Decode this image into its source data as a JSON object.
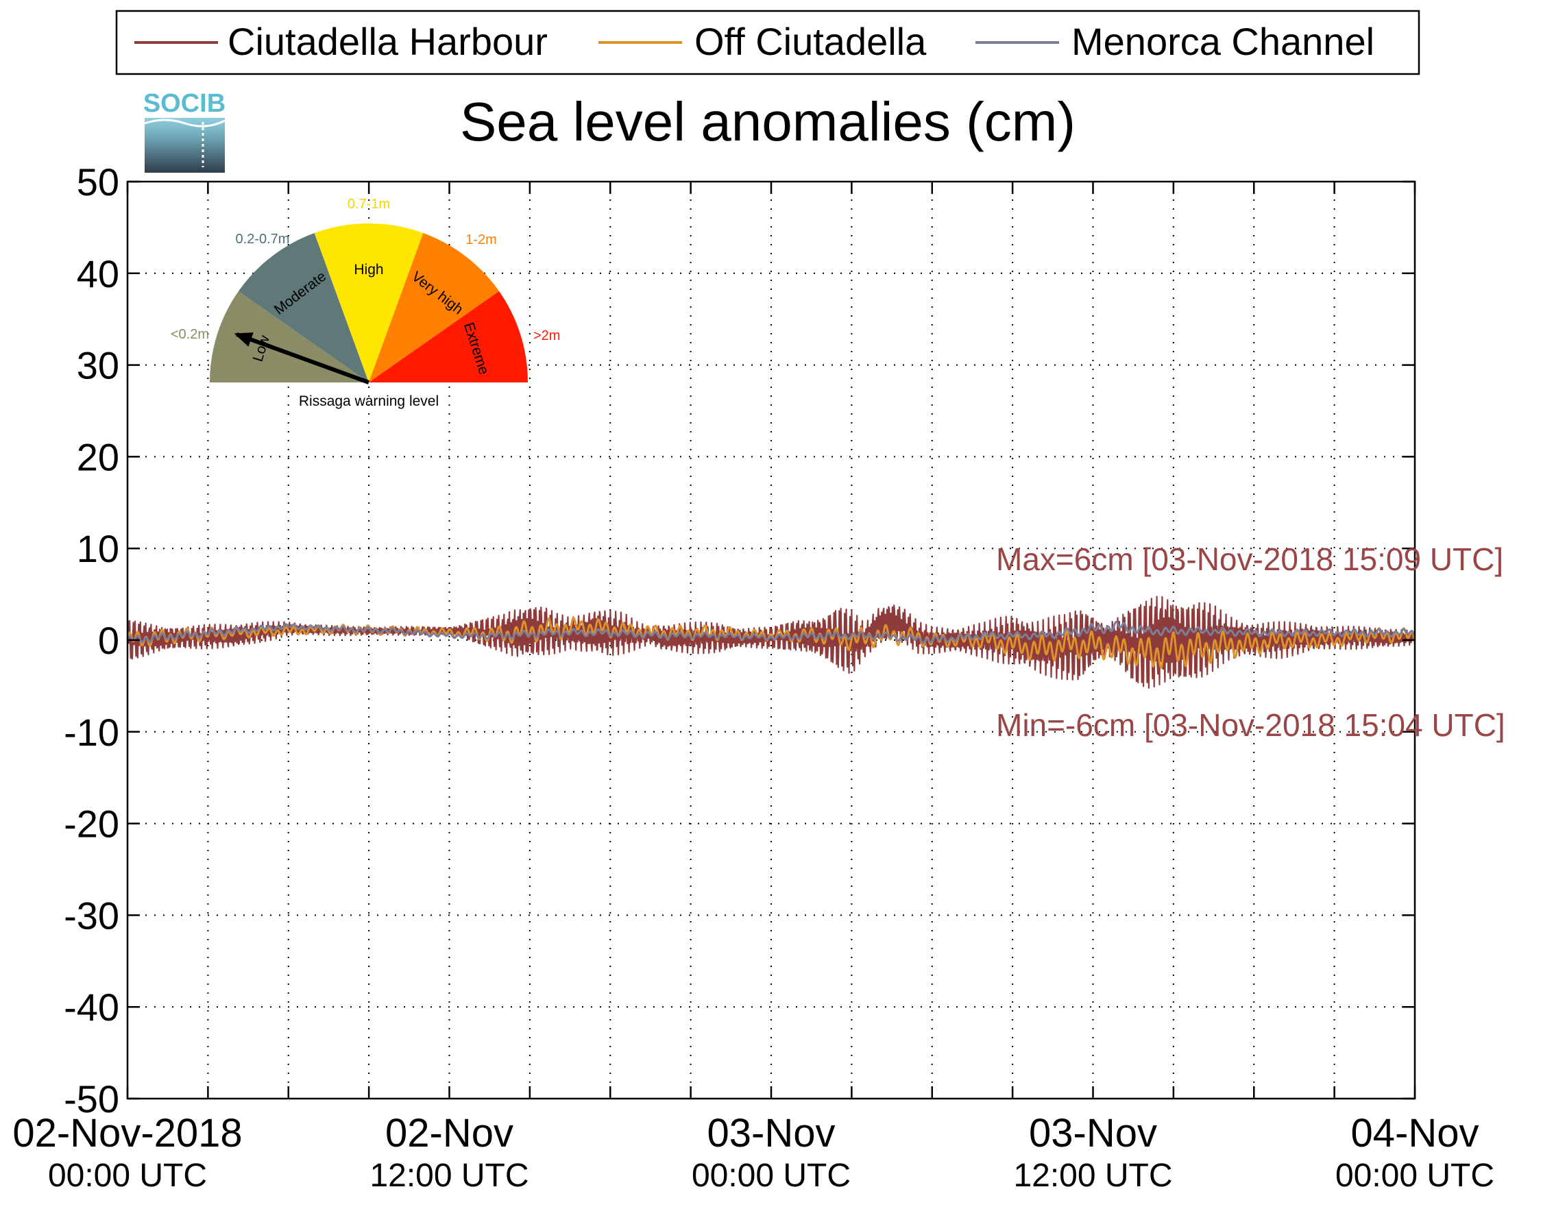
{
  "legend": {
    "entries": [
      {
        "name": "Ciutadella Harbour",
        "color": "#8e3b3b"
      },
      {
        "name": "Off Ciutadella",
        "color": "#e0922a"
      },
      {
        "name": "Menorca Channel",
        "color": "#7b7f99"
      }
    ],
    "placement": "top"
  },
  "logo": {
    "text": "SOCIB",
    "color": "#5bbcd0"
  },
  "gauge": {
    "caption": "Rissaga warning level",
    "needle_category": "Low",
    "segments": [
      {
        "name": "Low",
        "range": "<0.2m",
        "color": "#8a8c66",
        "range_color": "#8a8c66"
      },
      {
        "name": "Moderate",
        "range": "0.2-0.7m",
        "color": "#5f7978",
        "range_color": "#4f6e7a"
      },
      {
        "name": "High",
        "range": "0.7-1m",
        "color": "#ffe600",
        "range_color": "#f2d600"
      },
      {
        "name": "Very high",
        "range": "1-2m",
        "color": "#ff8000",
        "range_color": "#ff8000"
      },
      {
        "name": "Extreme",
        "range": ">2m",
        "color": "#ff1a00",
        "range_color": "#ff1a00"
      }
    ]
  },
  "annotations": {
    "max": "Max=6cm [03-Nov-2018 15:09 UTC]",
    "min": "Min=-6cm [03-Nov-2018 15:04 UTC]",
    "color": "#9a4646"
  },
  "chart_data": {
    "type": "line",
    "title": "Sea level anomalies (cm)",
    "xlabel": "",
    "ylabel": "",
    "x_unit": "hours since 02-Nov-2018 00:00 UTC",
    "xlim": [
      0,
      48
    ],
    "ylim": [
      -50,
      50
    ],
    "yticks": [
      50,
      40,
      30,
      20,
      10,
      0,
      -10,
      -20,
      -30,
      -40,
      -50
    ],
    "xticks": [
      {
        "x": 0,
        "line1": "02-Nov-2018",
        "line2": "00:00 UTC"
      },
      {
        "x": 12,
        "line1": "02-Nov",
        "line2": "12:00 UTC"
      },
      {
        "x": 24,
        "line1": "03-Nov",
        "line2": "00:00 UTC"
      },
      {
        "x": 36,
        "line1": "03-Nov",
        "line2": "12:00 UTC"
      },
      {
        "x": 48,
        "line1": "04-Nov",
        "line2": "00:00 UTC"
      }
    ],
    "minor_xticks": [
      3,
      6,
      9,
      15,
      18,
      21,
      27,
      30,
      33,
      39,
      42,
      45
    ],
    "grid": true,
    "series": [
      {
        "name": "Ciutadella Harbour",
        "color": "#8e3b3b",
        "x": [
          0,
          2,
          4,
          6,
          8,
          10,
          12,
          14,
          14.5,
          15,
          15.5,
          16,
          16.5,
          17,
          17.5,
          18,
          18.5,
          19,
          19.5,
          20,
          21,
          22,
          23,
          24,
          25,
          26,
          26.5,
          27,
          27.5,
          28,
          28.5,
          29,
          29.5,
          30,
          31,
          32,
          33,
          34,
          35,
          35.5,
          36,
          36.5,
          37,
          37.5,
          38,
          38.5,
          38.9,
          39.3,
          39.5,
          40,
          40.5,
          41,
          42,
          43,
          44,
          45,
          46,
          47,
          48
        ],
        "upper": [
          2.5,
          1.5,
          2,
          2,
          1.5,
          1.5,
          1.5,
          3,
          4,
          4.5,
          4,
          3,
          2.5,
          3,
          4,
          3.5,
          3,
          2,
          1.5,
          2,
          2,
          2,
          1.5,
          1.5,
          2.5,
          3,
          4,
          3.5,
          2,
          4,
          4.5,
          3.5,
          2,
          1.5,
          1.5,
          2,
          3,
          2.5,
          3,
          4,
          3.5,
          2,
          3,
          4,
          5,
          6,
          6,
          5,
          4.5,
          4.5,
          4,
          3,
          2,
          2,
          2,
          1.5,
          1.5,
          1.5,
          1
        ],
        "lower": [
          -2.5,
          -1,
          -1,
          0.5,
          0.5,
          0.5,
          0.5,
          -1.5,
          -2.5,
          -2.5,
          -2,
          -1.5,
          -1,
          -1.5,
          -2,
          -2,
          -1.5,
          -1,
          -0.5,
          -1.5,
          -1.5,
          -1.5,
          -1,
          -1,
          -1.5,
          -2.5,
          -3.5,
          -4,
          -2,
          -1,
          -0.5,
          -0.5,
          -1.5,
          -1.5,
          -1.5,
          -2,
          -3,
          -4,
          -4.5,
          -5,
          -3.5,
          -2,
          -3,
          -5,
          -6,
          -6,
          -6,
          -5.5,
          -5,
          -4.5,
          -3.5,
          -2.5,
          -2,
          -2,
          -1.5,
          -1,
          -1,
          -1,
          -0.5
        ]
      },
      {
        "name": "Off Ciutadella",
        "color": "#e0922a",
        "x": [
          0,
          2,
          4,
          6,
          8,
          10,
          12,
          14,
          15,
          16,
          17,
          18,
          19,
          20,
          21,
          22,
          23,
          24,
          25,
          26,
          27,
          28,
          29,
          30,
          31,
          32,
          33,
          34,
          35,
          36,
          37,
          38,
          39,
          40,
          41,
          42,
          43,
          44,
          45,
          46,
          47,
          48
        ],
        "y": [
          0,
          0.5,
          0.8,
          1,
          1.2,
          1,
          0.8,
          0.6,
          1,
          1.2,
          1.5,
          1.2,
          1,
          0.8,
          0.8,
          0.8,
          0.6,
          0.5,
          0.5,
          0.5,
          0,
          0.5,
          0.5,
          0,
          0,
          0,
          -0.5,
          -1,
          -0.5,
          -0.5,
          -1,
          -1.5,
          -1,
          -1,
          -0.5,
          -0.5,
          0,
          0,
          0,
          0.5,
          0.5,
          0.5
        ],
        "amp": [
          1,
          0.8,
          0.6,
          0.5,
          0.5,
          0.5,
          0.5,
          1,
          1.2,
          1.2,
          1,
          1,
          0.8,
          0.8,
          0.8,
          0.8,
          0.6,
          0.6,
          0.8,
          1,
          1.2,
          1.2,
          1,
          0.8,
          0.8,
          1,
          1.2,
          1.5,
          1.5,
          1.5,
          1.5,
          2,
          2,
          1.8,
          1.5,
          1.2,
          1,
          1,
          0.8,
          0.8,
          0.8,
          0.8
        ]
      },
      {
        "name": "Menorca Channel",
        "color": "#7b7f99",
        "x": [
          0,
          2,
          4,
          6,
          8,
          10,
          12,
          14,
          16,
          18,
          20,
          22,
          24,
          26,
          28,
          30,
          32,
          34,
          35,
          36,
          37,
          38,
          39,
          40,
          42,
          44,
          46,
          48
        ],
        "y": [
          0,
          0.5,
          1,
          1.5,
          1.2,
          1,
          0.5,
          0.5,
          0.8,
          0.8,
          0.5,
          0.5,
          0.3,
          0.5,
          0.5,
          0,
          0.5,
          0.5,
          0.8,
          1.2,
          1.5,
          1,
          1,
          1,
          0.8,
          0.8,
          0.8,
          0.8
        ],
        "amp": [
          0.5,
          0.4,
          0.4,
          0.3,
          0.3,
          0.3,
          0.3,
          0.4,
          0.4,
          0.4,
          0.4,
          0.3,
          0.3,
          0.4,
          0.4,
          0.4,
          0.4,
          0.4,
          0.5,
          0.6,
          0.6,
          0.5,
          0.5,
          0.4,
          0.4,
          0.4,
          0.4,
          0.4
        ]
      }
    ]
  }
}
